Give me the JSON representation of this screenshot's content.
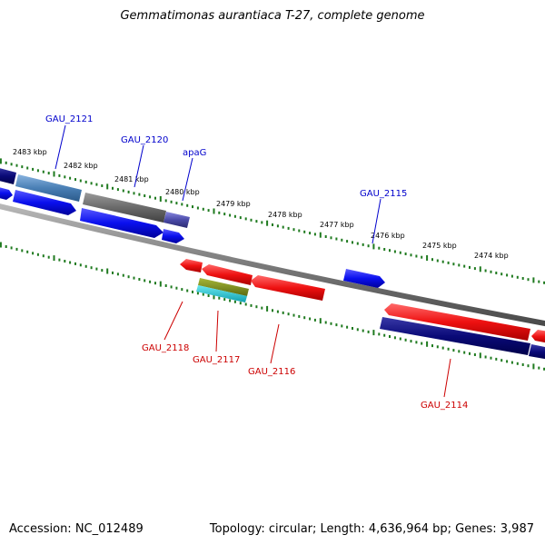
{
  "title": "Gemmatimonas aurantiaca T-27, complete genome",
  "footer": {
    "accession": "Accession: NC_012489",
    "stats": "Topology: circular; Length: 4,636,964 bp; Genes: 3,987"
  },
  "colors": {
    "backbone": "#8a8a8a",
    "tick": "#1f7a1f",
    "forward_label": "#0000cc",
    "reverse_label": "#cc0000",
    "blue": "#0a10ee",
    "navy": "#0a0a78",
    "red": "#ee1111",
    "gray": "#6a6a6a",
    "steelblue": "#4a7fb5",
    "slateblue": "#4a4aa8",
    "olive": "#7a8a1a",
    "cyan": "#18c8d8"
  },
  "scale": {
    "outer_labels": [
      "2483 kbp",
      "2482 kbp",
      "2481 kbp",
      "2480 kbp",
      "2479 kbp",
      "2478 kbp",
      "2477 kbp",
      "2476 kbp",
      "2475 kbp",
      "2474 kbp"
    ]
  },
  "genes": {
    "forward": [
      {
        "label": "GAU_2121",
        "color": "steelblue"
      },
      {
        "label": "GAU_2120",
        "color": "gray"
      },
      {
        "label": "apaG",
        "color": "slateblue"
      },
      {
        "label": "GAU_2115",
        "color": "blue"
      }
    ],
    "reverse": [
      {
        "label": "GAU_2118",
        "color": "red"
      },
      {
        "label": "GAU_2117",
        "color": "olive"
      },
      {
        "label": "GAU_2116",
        "color": "red"
      },
      {
        "label": "GAU_2114",
        "color": "red"
      }
    ]
  }
}
